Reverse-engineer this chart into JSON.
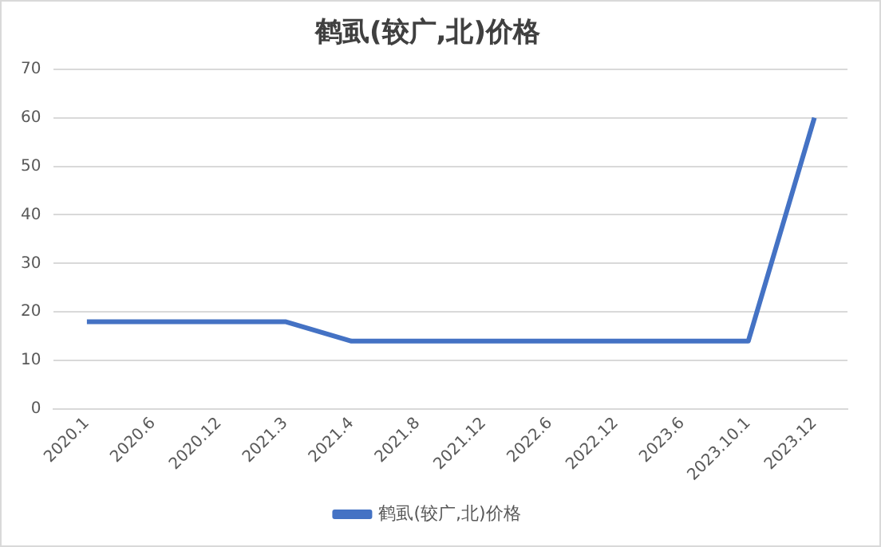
{
  "chart_data": {
    "type": "line",
    "title": "鹤虱(较广,北)价格",
    "categories": [
      "2020.1",
      "2020.6",
      "2020.12",
      "2021.3",
      "2021.4",
      "2021.8",
      "2021.12",
      "2022.6",
      "2022.12",
      "2023.6",
      "2023.10.1",
      "2023.12"
    ],
    "series": [
      {
        "name": "鹤虱(较广,北)价格",
        "color": "#4472c4",
        "values": [
          18,
          18,
          18,
          18,
          14,
          14,
          14,
          14,
          14,
          14,
          14,
          60
        ]
      }
    ],
    "ylim": [
      0,
      70
    ],
    "yticks": [
      0,
      10,
      20,
      30,
      40,
      50,
      60,
      70
    ],
    "grid": "y",
    "legend": "bottom",
    "marker": "none",
    "line_style": "solid"
  }
}
